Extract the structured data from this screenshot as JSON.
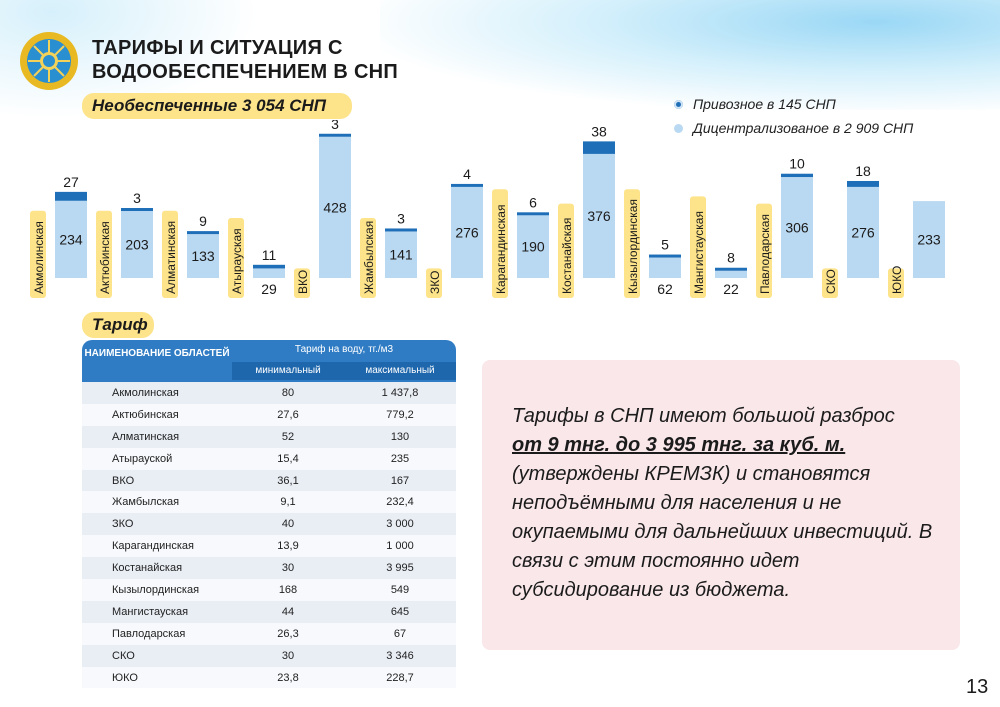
{
  "header": {
    "title_line1": "ТАРИФЫ И СИТУАЦИЯ С",
    "title_line2": "ВОДООБЕСПЕЧЕНИЕМ В СНП",
    "unserved_label": "Необеспеченные 3 054 СНП",
    "tariff_label": "Тариф"
  },
  "legend": {
    "delivered": "Привозное в 145 СНП",
    "decentralized": "Дицентрализованое в 2 909 СНП"
  },
  "colors": {
    "delivered": "#1f6fb8",
    "decentralized": "#b9d8f1",
    "region_label_bg": "#fde38a",
    "table_header": "#2f7cc4",
    "note_bg": "#f9e7ea"
  },
  "chart_data": {
    "type": "bar",
    "stacked": true,
    "categories": [
      "Акмолинская",
      "Актюбинская",
      "Алматинская",
      "Атырауская",
      "ВКО",
      "Жамбылская",
      "ЗКО",
      "Карагандинская",
      "Костанайская",
      "Кызылординская",
      "Мангистауская",
      "Павлодарская",
      "СКО",
      "ЮКО"
    ],
    "series": [
      {
        "name": "Дицентрализованое в 2 909 СНП",
        "values": [
          234,
          203,
          133,
          29,
          428,
          141,
          276,
          190,
          376,
          62,
          22,
          306,
          276,
          233
        ]
      },
      {
        "name": "Привозное в 145 СНП",
        "values": [
          27,
          3,
          9,
          11,
          3,
          3,
          4,
          6,
          38,
          5,
          8,
          10,
          18,
          null
        ]
      }
    ],
    "title": "",
    "xlabel": "",
    "ylabel": ""
  },
  "table": {
    "header_region": "НАИМЕНОВАНИЕ ОБЛАСТЕЙ",
    "header_tariff": "Тариф на воду, тг./м3",
    "header_min": "минимальный",
    "header_max": "максимальный",
    "rows": [
      {
        "region": "Акмолинская",
        "min": "80",
        "max": "1 437,8"
      },
      {
        "region": "Актюбинская",
        "min": "27,6",
        "max": "779,2"
      },
      {
        "region": "Алматинская",
        "min": "52",
        "max": "130"
      },
      {
        "region": "Атырауской",
        "min": "15,4",
        "max": "235"
      },
      {
        "region": "ВКО",
        "min": "36,1",
        "max": "167"
      },
      {
        "region": "Жамбылская",
        "min": "9,1",
        "max": "232,4"
      },
      {
        "region": "ЗКО",
        "min": "40",
        "max": "3 000"
      },
      {
        "region": "Карагандинская",
        "min": "13,9",
        "max": "1 000"
      },
      {
        "region": "Костанайская",
        "min": "30",
        "max": "3 995"
      },
      {
        "region": "Кызылординская",
        "min": "168",
        "max": "549"
      },
      {
        "region": "Мангистауская",
        "min": "44",
        "max": "645"
      },
      {
        "region": "Павлодарская",
        "min": "26,3",
        "max": "67"
      },
      {
        "region": "СКО",
        "min": "30",
        "max": "3 346"
      },
      {
        "region": "ЮКО",
        "min": "23,8",
        "max": "228,7"
      }
    ]
  },
  "note": {
    "line1": "Тарифы в СНП имеют большой разброс",
    "line2_emphasis": "от 9 тнг. до 3 995 тнг. за куб. м.",
    "rest": "(утверждены КРЕМЗК) и становятся неподъёмными для населения и не окупаемыми для дальнейших инвестиций. В связи с этим постоянно идет субсидирование из бюджета."
  },
  "page_number": "13"
}
